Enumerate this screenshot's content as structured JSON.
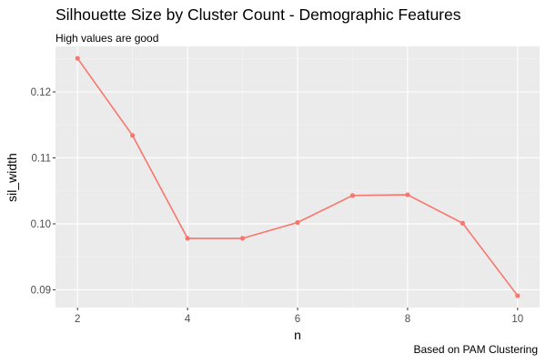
{
  "colors": {
    "panel_background": "#ebebeb",
    "grid_major": "#ffffff",
    "grid_minor": "#f5f5f5",
    "series": "#f8766d",
    "tick_text": "#4d4d4d"
  },
  "chart_data": {
    "type": "line",
    "title": "Silhouette Size by Cluster Count - Demographic Features",
    "subtitle": "High values are good",
    "caption": "Based on PAM Clustering",
    "xlabel": "n",
    "ylabel": "sil_width",
    "x": [
      2,
      3,
      4,
      5,
      6,
      7,
      8,
      9,
      10
    ],
    "series": [
      {
        "values": [
          0.1251,
          0.1134,
          0.0978,
          0.0978,
          0.1002,
          0.1043,
          0.1044,
          0.1001,
          0.0891
        ]
      }
    ],
    "xlim": [
      1.6,
      10.4
    ],
    "ylim": [
      0.0873,
      0.1269
    ],
    "xticks": [
      2,
      4,
      6,
      8,
      10
    ],
    "xtick_labels": [
      "2",
      "4",
      "6",
      "8",
      "10"
    ],
    "yticks": [
      0.09,
      0.1,
      0.11,
      0.12
    ],
    "ytick_labels": [
      "0.09",
      "0.10",
      "0.11",
      "0.12"
    ],
    "grid": true,
    "legend": "none",
    "markers": true
  }
}
